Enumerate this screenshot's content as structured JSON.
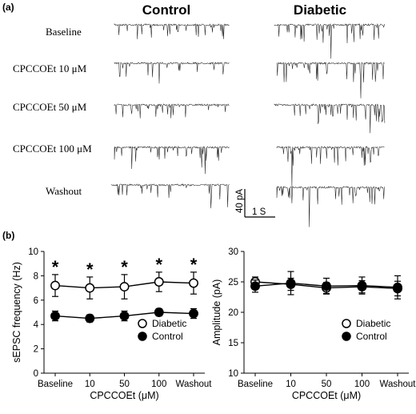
{
  "panels": {
    "a_label": "(a)",
    "b_label": "(b)"
  },
  "traces": {
    "headers": [
      "Control",
      "Diabetic"
    ],
    "conditions": [
      "Baseline",
      "CPCCOEt 10 μM",
      "CPCCOEt 50 μM",
      "CPCCOEt 100 μM",
      "Washout"
    ],
    "scale_bar": {
      "amplitude": "40 pA",
      "time": "1 S"
    }
  },
  "chart_data": [
    {
      "type": "line",
      "ylabel": "sEPSC frequency (Hz)",
      "xlabel": "CPCCOEt (μM)",
      "categories": [
        "Baseline",
        "10",
        "50",
        "100",
        "Washout"
      ],
      "ylim": [
        0,
        10
      ],
      "yticks": [
        0,
        2,
        4,
        6,
        8,
        10
      ],
      "series": [
        {
          "name": "Diabetic",
          "marker": "open-circle",
          "values": [
            7.2,
            7.0,
            7.1,
            7.5,
            7.4
          ],
          "error": [
            0.9,
            0.9,
            1.0,
            0.8,
            0.9
          ]
        },
        {
          "name": "Control",
          "marker": "filled-circle",
          "values": [
            4.7,
            4.5,
            4.7,
            5.0,
            4.9
          ],
          "error": [
            0.4,
            0.3,
            0.4,
            0.3,
            0.4
          ]
        }
      ],
      "significance": [
        "*",
        "*",
        "*",
        "*",
        "*"
      ],
      "legend": "bottom-right"
    },
    {
      "type": "line",
      "ylabel": "Amplitude (pA)",
      "xlabel": "CPCCOEt (μM)",
      "categories": [
        "Baseline",
        "10",
        "50",
        "100",
        "Washout"
      ],
      "ylim": [
        10,
        30
      ],
      "yticks": [
        10,
        15,
        20,
        25,
        30
      ],
      "series": [
        {
          "name": "Diabetic",
          "marker": "open-circle",
          "values": [
            25.0,
            24.6,
            24.0,
            24.2,
            23.9
          ],
          "error": [
            0.8,
            1.0,
            0.9,
            1.0,
            1.2
          ]
        },
        {
          "name": "Control",
          "marker": "filled-circle",
          "values": [
            24.3,
            24.8,
            24.3,
            24.4,
            24.1
          ],
          "error": [
            1.0,
            1.9,
            1.3,
            1.4,
            1.9
          ]
        }
      ],
      "legend": "bottom-right"
    }
  ]
}
